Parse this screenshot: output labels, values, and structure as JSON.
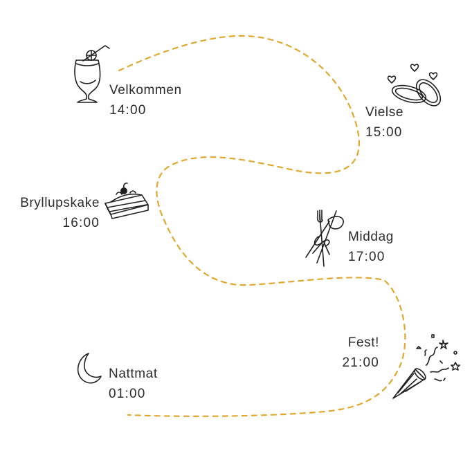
{
  "colors": {
    "path": "#e0a82e",
    "text": "#2b2b2b",
    "icon": "#1f1f1f",
    "background": "#ffffff"
  },
  "events": [
    {
      "label": "Velkommen",
      "time": "14:00",
      "icon": "cocktail-glass-icon"
    },
    {
      "label": "Vielse",
      "time": "15:00",
      "icon": "wedding-rings-icon"
    },
    {
      "label": "Bryllupskake",
      "time": "16:00",
      "icon": "cake-slice-icon"
    },
    {
      "label": "Middag",
      "time": "17:00",
      "icon": "cutlery-bundle-icon"
    },
    {
      "label": "Fest!",
      "time": "21:00",
      "icon": "party-popper-icon"
    },
    {
      "label": "Nattmat",
      "time": "01:00",
      "icon": "crescent-moon-icon"
    }
  ]
}
